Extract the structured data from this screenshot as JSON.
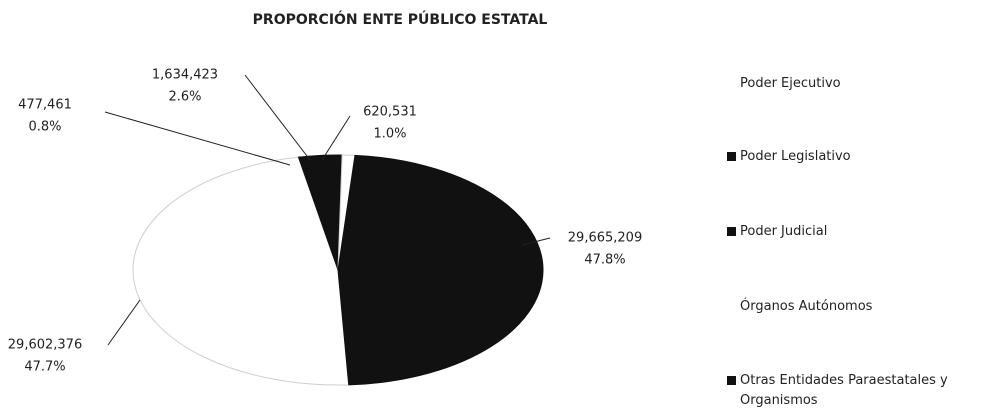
{
  "chart_data": {
    "type": "pie",
    "title": "PROPORCIÓN ENTE PÚBLICO ESTATAL",
    "categories": [
      "Poder Ejecutivo",
      "Poder Legislativo",
      "Poder Judicial",
      "Órganos Autónomos",
      "Otras Entidades Paraestatales y Organismos"
    ],
    "values": [
      29602376,
      477461,
      1634423,
      620531,
      29665209
    ],
    "value_labels": [
      "29,602,376",
      "477,461",
      "1,634,423",
      "620,531",
      "29,665,209"
    ],
    "percentages": [
      47.7,
      0.8,
      2.6,
      1.0,
      47.8
    ],
    "percentage_labels": [
      "47.7%",
      "0.8%",
      "2.6%",
      "1.0%",
      "47.8%"
    ],
    "colors": [
      "#ffffff",
      "#111111",
      "#111111",
      "#ffffff",
      "#111111"
    ],
    "legend": "right"
  }
}
